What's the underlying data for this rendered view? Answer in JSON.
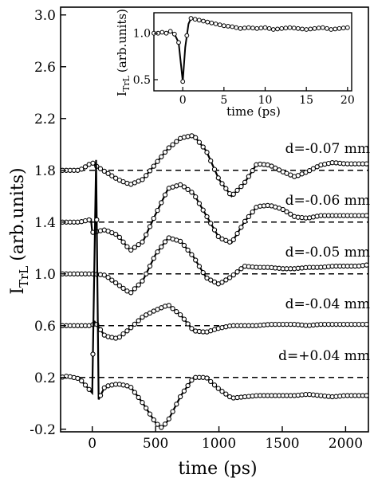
{
  "chart_data": [
    {
      "type": "line",
      "xlabel": "time (ps)",
      "ylabel": "I",
      "ylabel_subscript": "TrL",
      "ylabel_units": "(arb.units)",
      "xlim": [
        -250,
        2180
      ],
      "ylim": [
        -0.22,
        3.06
      ],
      "x_ticks": [
        0,
        500,
        1000,
        1500,
        2000
      ],
      "x_tick_labels": [
        "0",
        "500",
        "1000",
        "1500",
        "2000"
      ],
      "y_ticks": [
        -0.2,
        0.2,
        0.6,
        1.0,
        1.4,
        1.8,
        2.2,
        2.6,
        3.0
      ],
      "y_tick_labels": [
        "-0.2",
        "0.2",
        "0.6",
        "1.0",
        "1.4",
        "1.8",
        "2.2",
        "2.6",
        "3.0"
      ],
      "grid": false,
      "legend": "none",
      "series": [
        {
          "name": "d=-0.07 mm",
          "baseline": 1.8,
          "x": [
            -250,
            -100,
            0,
            20,
            100,
            200,
            300,
            400,
            500,
            600,
            700,
            800,
            900,
            1000,
            1100,
            1200,
            1300,
            1400,
            1500,
            1600,
            1700,
            1800,
            1900,
            2000,
            2100,
            2180
          ],
          "values": [
            1.8,
            1.8,
            1.86,
            1.84,
            1.79,
            1.73,
            1.69,
            1.73,
            1.85,
            1.97,
            2.05,
            2.07,
            1.95,
            1.73,
            1.6,
            1.7,
            1.85,
            1.84,
            1.79,
            1.75,
            1.79,
            1.84,
            1.86,
            1.85,
            1.85,
            1.85
          ]
        },
        {
          "name": "d=-0.06 mm",
          "baseline": 1.4,
          "x": [
            -250,
            -100,
            -10,
            0,
            100,
            200,
            300,
            400,
            500,
            600,
            700,
            800,
            900,
            1000,
            1100,
            1200,
            1300,
            1400,
            1500,
            1600,
            1700,
            1800,
            1900,
            2000,
            2100,
            2180
          ],
          "values": [
            1.4,
            1.4,
            1.42,
            1.32,
            1.34,
            1.3,
            1.18,
            1.25,
            1.46,
            1.66,
            1.69,
            1.62,
            1.45,
            1.28,
            1.24,
            1.4,
            1.52,
            1.53,
            1.5,
            1.44,
            1.43,
            1.45,
            1.45,
            1.45,
            1.45,
            1.45
          ]
        },
        {
          "name": "d=-0.05 mm",
          "baseline": 1.0,
          "x": [
            -250,
            -100,
            0,
            100,
            200,
            300,
            400,
            500,
            600,
            700,
            800,
            900,
            1000,
            1100,
            1200,
            1300,
            1400,
            1500,
            1600,
            1700,
            1800,
            1900,
            2000,
            2100,
            2180
          ],
          "values": [
            1.0,
            1.0,
            1.0,
            0.99,
            0.92,
            0.85,
            0.95,
            1.15,
            1.28,
            1.25,
            1.13,
            0.97,
            0.92,
            0.98,
            1.06,
            1.05,
            1.05,
            1.04,
            1.04,
            1.05,
            1.05,
            1.06,
            1.06,
            1.06,
            1.07
          ]
        },
        {
          "name": "d=-0.04 mm",
          "baseline": 0.6,
          "x": [
            -250,
            -100,
            0,
            20,
            100,
            200,
            300,
            400,
            500,
            600,
            700,
            800,
            900,
            1000,
            1100,
            1200,
            1300,
            1400,
            1500,
            1600,
            1700,
            1800,
            1900,
            2000,
            2100,
            2180
          ],
          "values": [
            0.6,
            0.6,
            0.6,
            0.63,
            0.52,
            0.5,
            0.58,
            0.67,
            0.72,
            0.76,
            0.68,
            0.56,
            0.55,
            0.58,
            0.6,
            0.6,
            0.6,
            0.61,
            0.61,
            0.61,
            0.6,
            0.61,
            0.61,
            0.61,
            0.61,
            0.61
          ]
        },
        {
          "name": "d=+0.04 mm",
          "baseline": 0.2,
          "x": [
            -250,
            -200,
            -100,
            0,
            30,
            50,
            100,
            200,
            300,
            400,
            500,
            550,
            600,
            700,
            800,
            900,
            1000,
            1100,
            1200,
            1300,
            1400,
            1500,
            1600,
            1700,
            1800,
            1900,
            2000,
            2100,
            2180
          ],
          "values": [
            0.2,
            0.21,
            0.19,
            0.08,
            1.88,
            0.03,
            0.13,
            0.15,
            0.13,
            0.0,
            -0.15,
            -0.19,
            -0.13,
            0.06,
            0.2,
            0.2,
            0.11,
            0.04,
            0.05,
            0.06,
            0.06,
            0.06,
            0.06,
            0.07,
            0.06,
            0.05,
            0.06,
            0.06,
            0.06
          ]
        }
      ],
      "inset": {
        "type": "line",
        "xlabel": "time (ps)",
        "ylabel": "I",
        "ylabel_subscript": "TrL",
        "ylabel_units": "(arb.units)",
        "xlim": [
          -3.5,
          20.5
        ],
        "ylim": [
          0.38,
          1.22
        ],
        "x_ticks": [
          0,
          5,
          10,
          15,
          20
        ],
        "x_tick_labels": [
          "0",
          "5",
          "10",
          "15",
          "20"
        ],
        "y_ticks": [
          0.5,
          1.0
        ],
        "y_tick_labels": [
          "0.5",
          "1.0"
        ],
        "x": [
          -3.5,
          -3,
          -2.5,
          -2,
          -1.5,
          -1,
          -0.5,
          0,
          0.3,
          0.7,
          1,
          2,
          3,
          4,
          5,
          6,
          7,
          8,
          9,
          10,
          11,
          12,
          13,
          14,
          15,
          16,
          17,
          18,
          19,
          20
        ],
        "values": [
          1.0,
          1.0,
          1.01,
          1.0,
          1.02,
          0.99,
          0.9,
          0.48,
          0.85,
          1.1,
          1.16,
          1.14,
          1.12,
          1.1,
          1.08,
          1.07,
          1.05,
          1.06,
          1.05,
          1.06,
          1.04,
          1.05,
          1.06,
          1.05,
          1.04,
          1.05,
          1.06,
          1.04,
          1.05,
          1.06
        ]
      }
    }
  ],
  "colors": {
    "ink": "#000000",
    "background": "#ffffff",
    "marker_fill": "#ffffff"
  }
}
